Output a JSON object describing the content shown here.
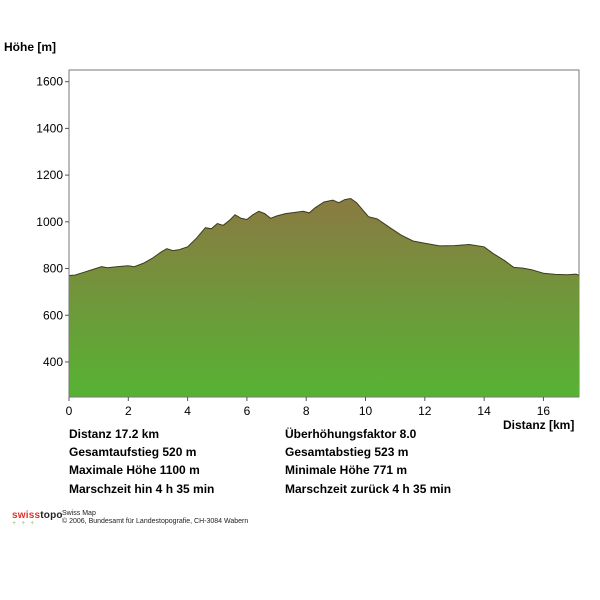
{
  "chart_data": {
    "type": "area",
    "ylabel": "Höhe [m]",
    "xlabel": "Distanz [km]",
    "xlim": [
      0,
      17.2
    ],
    "ylim": [
      250,
      1650
    ],
    "xticks": [
      0,
      2,
      4,
      6,
      8,
      10,
      12,
      14,
      16
    ],
    "yticks": [
      400,
      600,
      800,
      1000,
      1200,
      1400,
      1600
    ],
    "grid": false,
    "x": [
      0,
      0.2,
      0.5,
      0.8,
      1.1,
      1.3,
      1.6,
      2.0,
      2.2,
      2.5,
      2.8,
      3.1,
      3.3,
      3.5,
      3.7,
      4.0,
      4.3,
      4.6,
      4.8,
      5.0,
      5.2,
      5.4,
      5.6,
      5.8,
      6.0,
      6.2,
      6.4,
      6.6,
      6.8,
      7.0,
      7.3,
      7.6,
      7.9,
      8.1,
      8.3,
      8.6,
      8.9,
      9.1,
      9.3,
      9.5,
      9.7,
      9.9,
      10.1,
      10.4,
      10.8,
      11.2,
      11.6,
      12.0,
      12.5,
      13.0,
      13.5,
      14.0,
      14.3,
      14.7,
      15.0,
      15.3,
      15.6,
      16.0,
      16.4,
      16.8,
      17.1,
      17.2
    ],
    "values": [
      770,
      772,
      784,
      796,
      808,
      803,
      808,
      812,
      808,
      822,
      843,
      870,
      885,
      877,
      880,
      893,
      930,
      975,
      970,
      993,
      985,
      1005,
      1030,
      1015,
      1010,
      1030,
      1045,
      1035,
      1015,
      1025,
      1035,
      1040,
      1045,
      1038,
      1060,
      1085,
      1093,
      1082,
      1095,
      1100,
      1082,
      1052,
      1022,
      1012,
      977,
      943,
      918,
      908,
      897,
      898,
      903,
      893,
      865,
      833,
      805,
      802,
      795,
      780,
      775,
      773,
      776,
      771
    ],
    "fill_top_color": "#8a7a42",
    "fill_bottom_color": "#56b333",
    "line_color": "#3b3b1e"
  },
  "stats": {
    "distance": "Distanz 17.2 km",
    "ascent": "Gesamtaufstieg  520 m",
    "max_height": "Maximale Höhe  1100 m",
    "time_out": "Marschzeit hin  4 h 35 min",
    "exaggeration": "Überhöhungsfaktor 8.0",
    "descent": "Gesamtabstieg  523 m",
    "min_height": "Minimale Höhe  771 m",
    "time_back": "Marschzeit zurück  4 h 35 min"
  },
  "footer": {
    "logo_swiss": "swiss",
    "logo_topo": "topo",
    "product": "Swiss Map",
    "copyright": "© 2006, Bundesamt für Landestopografie, CH-3084 Wabern"
  }
}
